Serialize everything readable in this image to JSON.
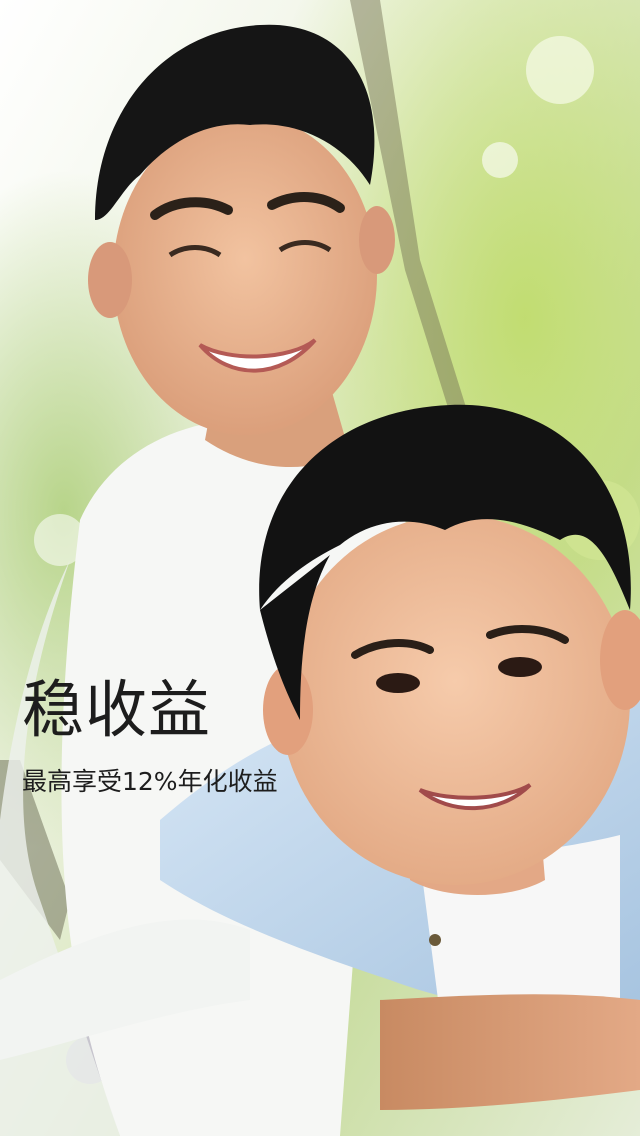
{
  "splash": {
    "headline": "稳收益",
    "subline": "最高享受12%年化收益",
    "photo_icon": "family-photo-icon"
  },
  "colors": {
    "text": "#1d1d1d",
    "foliage": "#b6d36a",
    "shirt_blue": "#b9d3ea"
  }
}
